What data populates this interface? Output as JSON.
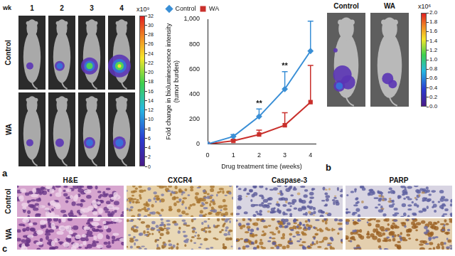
{
  "panel_labels": [
    "a",
    "b",
    "c"
  ],
  "panel_a": {
    "week_label": "wk",
    "weeks": [
      "1",
      "2",
      "3",
      "4"
    ],
    "rows": [
      "Control",
      "WA"
    ],
    "colorbar": {
      "label": "x10⁹",
      "range": [
        0,
        32
      ],
      "ticks": [
        0,
        2,
        4,
        6,
        8,
        10,
        12,
        14,
        16,
        18,
        20,
        22,
        24,
        26,
        28,
        30,
        32
      ]
    }
  },
  "chart_data": {
    "type": "line",
    "x": [
      0,
      1,
      2,
      3,
      4
    ],
    "series": [
      {
        "name": "Control",
        "color": "#3a8fd6",
        "marker": "diamond",
        "values": [
          0,
          60,
          220,
          440,
          745
        ],
        "errors": [
          0,
          15,
          60,
          140,
          240
        ]
      },
      {
        "name": "WA",
        "color": "#c9302c",
        "marker": "square",
        "values": [
          0,
          25,
          75,
          150,
          335
        ],
        "errors": [
          0,
          8,
          35,
          100,
          295
        ]
      }
    ],
    "xlabel": "Drug treatment time (weeks)",
    "ylabel": "Fold change in bioluminescence intensity (tumor burden)",
    "xlim": [
      0,
      4.2
    ],
    "xticks": [
      0,
      1,
      2,
      3,
      4
    ],
    "ylim": [
      0,
      1000
    ],
    "yticks": [
      0,
      200,
      400,
      600,
      800,
      {
        "value": 1000,
        "label": "1,000"
      }
    ],
    "grid": false,
    "legend": "top",
    "annotations": [
      {
        "x": 2,
        "text": "**"
      },
      {
        "x": 3,
        "text": "**"
      }
    ]
  },
  "panel_b": {
    "columns": [
      "Control",
      "WA"
    ],
    "colorbar": {
      "label": "x10⁶",
      "range": [
        0,
        2
      ],
      "ticks": [
        {
          "value": 0,
          "label": "0.0"
        },
        {
          "value": 0.2,
          "label": "0.2"
        },
        {
          "value": 0.4,
          "label": "0.4"
        },
        {
          "value": 0.6,
          "label": "0.6"
        },
        {
          "value": 0.8,
          "label": "0.8"
        },
        {
          "value": 1,
          "label": "1.0"
        },
        {
          "value": 1.2,
          "label": "1.2"
        },
        {
          "value": 1.4,
          "label": "1.4"
        },
        {
          "value": 1.6,
          "label": "1.6"
        },
        {
          "value": 1.8,
          "label": "1.8"
        },
        {
          "value": 2,
          "label": "2.0"
        }
      ]
    }
  },
  "panel_c": {
    "columns": [
      "H&E",
      "CXCR4",
      "Caspase-3",
      "PARP"
    ],
    "rows": [
      "Control",
      "WA"
    ]
  }
}
